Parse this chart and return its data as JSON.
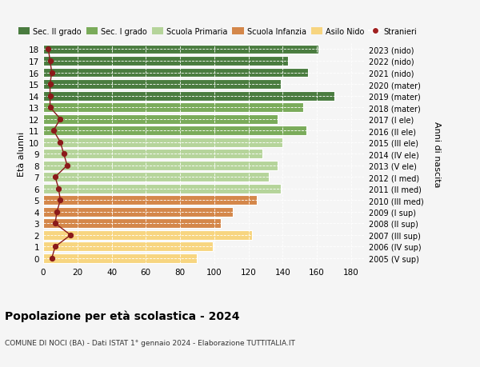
{
  "ages": [
    18,
    17,
    16,
    15,
    14,
    13,
    12,
    11,
    10,
    9,
    8,
    7,
    6,
    5,
    4,
    3,
    2,
    1,
    0
  ],
  "right_labels": [
    "2005 (V sup)",
    "2006 (IV sup)",
    "2007 (III sup)",
    "2008 (II sup)",
    "2009 (I sup)",
    "2010 (III med)",
    "2011 (II med)",
    "2012 (I med)",
    "2013 (V ele)",
    "2014 (IV ele)",
    "2015 (III ele)",
    "2016 (II ele)",
    "2017 (I ele)",
    "2018 (mater)",
    "2019 (mater)",
    "2020 (mater)",
    "2021 (nido)",
    "2022 (nido)",
    "2023 (nido)"
  ],
  "bar_values": [
    161,
    143,
    155,
    139,
    170,
    152,
    137,
    154,
    140,
    128,
    137,
    132,
    139,
    125,
    111,
    104,
    122,
    99,
    90
  ],
  "stranieri_values": [
    3,
    4,
    5,
    4,
    4,
    4,
    10,
    6,
    10,
    12,
    14,
    7,
    9,
    10,
    8,
    7,
    16,
    7,
    5
  ],
  "bar_colors": [
    "#4a7c3f",
    "#4a7c3f",
    "#4a7c3f",
    "#4a7c3f",
    "#4a7c3f",
    "#7aab5a",
    "#7aab5a",
    "#7aab5a",
    "#b5d49a",
    "#b5d49a",
    "#b5d49a",
    "#b5d49a",
    "#b5d49a",
    "#d4874a",
    "#d4874a",
    "#d4874a",
    "#f7d580",
    "#f7d580",
    "#f7d580"
  ],
  "legend_labels": [
    "Sec. II grado",
    "Sec. I grado",
    "Scuola Primaria",
    "Scuola Infanzia",
    "Asilo Nido",
    "Stranieri"
  ],
  "legend_colors": [
    "#4a7c3f",
    "#7aab5a",
    "#b5d49a",
    "#d4874a",
    "#f7d580",
    "#a02020"
  ],
  "title": "Popolazione per età scolastica - 2024",
  "subtitle": "COMUNE DI NOCI (BA) - Dati ISTAT 1° gennaio 2024 - Elaborazione TUTTITALIA.IT",
  "ylabel": "Età alunni",
  "right_ylabel": "Anni di nascita",
  "xlabel_ticks": [
    0,
    20,
    40,
    60,
    80,
    100,
    120,
    140,
    160,
    180
  ],
  "xlim": [
    0,
    188
  ],
  "bg_color": "#f5f5f5",
  "stranieri_line_color": "#8b1a1a",
  "stranieri_dot_color": "#8b1a1a"
}
